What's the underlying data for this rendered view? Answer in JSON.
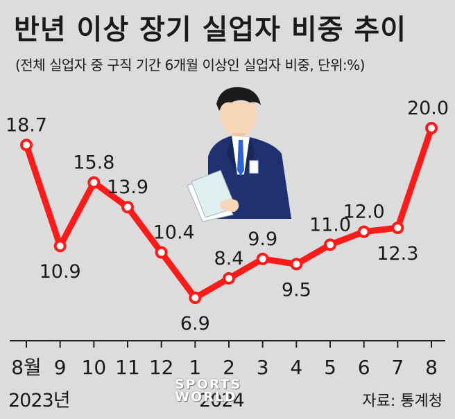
{
  "title": "반년 이상 장기 실업자 비중 추이",
  "subtitle": "(전체 실업자 중 구직 기간 6개월 이상인 실업자 비중, 단위:%)",
  "source": "자료: 통계청",
  "watermark": {
    "line1": "SPORTS",
    "line2": "WORLD"
  },
  "colors": {
    "line": "#ff1a1a",
    "marker_fill": "#ffffff",
    "background": "#dcdcdc",
    "axis": "#222222",
    "illustration_suit": "#1f3170"
  },
  "illustration": {
    "description_icon": "businessman-reading-document-icon"
  },
  "chart_data": {
    "type": "line",
    "categories": [
      "8월",
      "9",
      "10",
      "11",
      "12",
      "1",
      "2",
      "3",
      "4",
      "5",
      "6",
      "7",
      "8"
    ],
    "values": [
      18.7,
      10.9,
      15.8,
      13.9,
      10.4,
      6.9,
      8.4,
      9.9,
      9.5,
      11.0,
      12.0,
      12.3,
      20.0
    ],
    "value_labels": [
      "18.7",
      "10.9",
      "15.8",
      "13.9",
      "10.4",
      "6.9",
      "8.4",
      "9.9",
      "9.5",
      "11.0",
      "12.0",
      "12.3",
      "20.0"
    ],
    "year_labels": [
      "2023년",
      "2024"
    ],
    "title": "반년 이상 장기 실업자 비중 추이",
    "xlabel": "",
    "ylabel": "",
    "grid": false,
    "legend": "none"
  }
}
